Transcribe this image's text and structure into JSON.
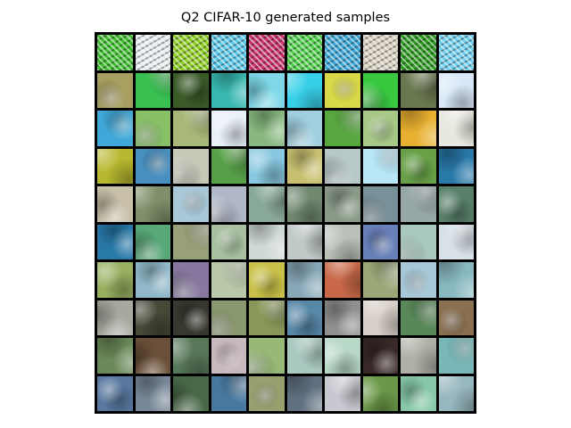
{
  "figure": {
    "title": "Q2 CIFAR-10 generated samples"
  },
  "grid": {
    "rows": 10,
    "cols": 10,
    "border_color": "#000000",
    "tile_colors": [
      [
        "#3fbf2e",
        "#e8eef0",
        "#8fcf24",
        "#58c8e8",
        "#c8306a",
        "#4fd04a",
        "#3aa6d6",
        "#d8d0c0",
        "#2f9a22",
        "#6fd0f0"
      ],
      [
        "#a8a060",
        "#38c050",
        "#3a5a28",
        "#38b8b0",
        "#7ed8e8",
        "#38d0e8",
        "#d8d848",
        "#38c840",
        "#6a7850",
        "#d8e8f8"
      ],
      [
        "#40a8d8",
        "#88c068",
        "#a8b878",
        "#e8f0f8",
        "#88b880",
        "#a0d0e0",
        "#58a840",
        "#a8c888",
        "#e8b030",
        "#e8e8e0"
      ],
      [
        "#b8b830",
        "#4890c0",
        "#c8c8b8",
        "#58a048",
        "#88c8e0",
        "#c8c070",
        "#b8c8c8",
        "#b8e8f8",
        "#68a048",
        "#2878a8"
      ],
      [
        "#c8c0a8",
        "#80906a",
        "#a8c8d8",
        "#b0b8c8",
        "#88a898",
        "#708870",
        "#8a9a88",
        "#789098",
        "#98a8a8",
        "#58806a"
      ],
      [
        "#2878a8",
        "#58a878",
        "#98a078",
        "#a8c0a0",
        "#d0d8d8",
        "#c0c8c8",
        "#b8c0b8",
        "#6880b8",
        "#a8c8c0",
        "#d8e0e8"
      ],
      [
        "#98b060",
        "#90b8c8",
        "#8878a0",
        "#b8c8a8",
        "#c8c048",
        "#88a8b8",
        "#c86848",
        "#9aa878",
        "#a8c8d8",
        "#88b8c0"
      ],
      [
        "#a8a8a0",
        "#484838",
        "#383830",
        "#8a9870",
        "#889858",
        "#5888a8",
        "#909090",
        "#d8d0c8",
        "#588858",
        "#8a7050"
      ],
      [
        "#6a8858",
        "#6a5038",
        "#58785a",
        "#c8b8c0",
        "#98b878",
        "#a8c8c0",
        "#b8d8c8",
        "#382828",
        "#b0b0a8",
        "#78b8b8"
      ],
      [
        "#5878a0",
        "#788898",
        "#486848",
        "#4878a0",
        "#98a070",
        "#607080",
        "#c8c8d0",
        "#6a9848",
        "#88c8a8",
        "#98b8c0"
      ]
    ]
  }
}
